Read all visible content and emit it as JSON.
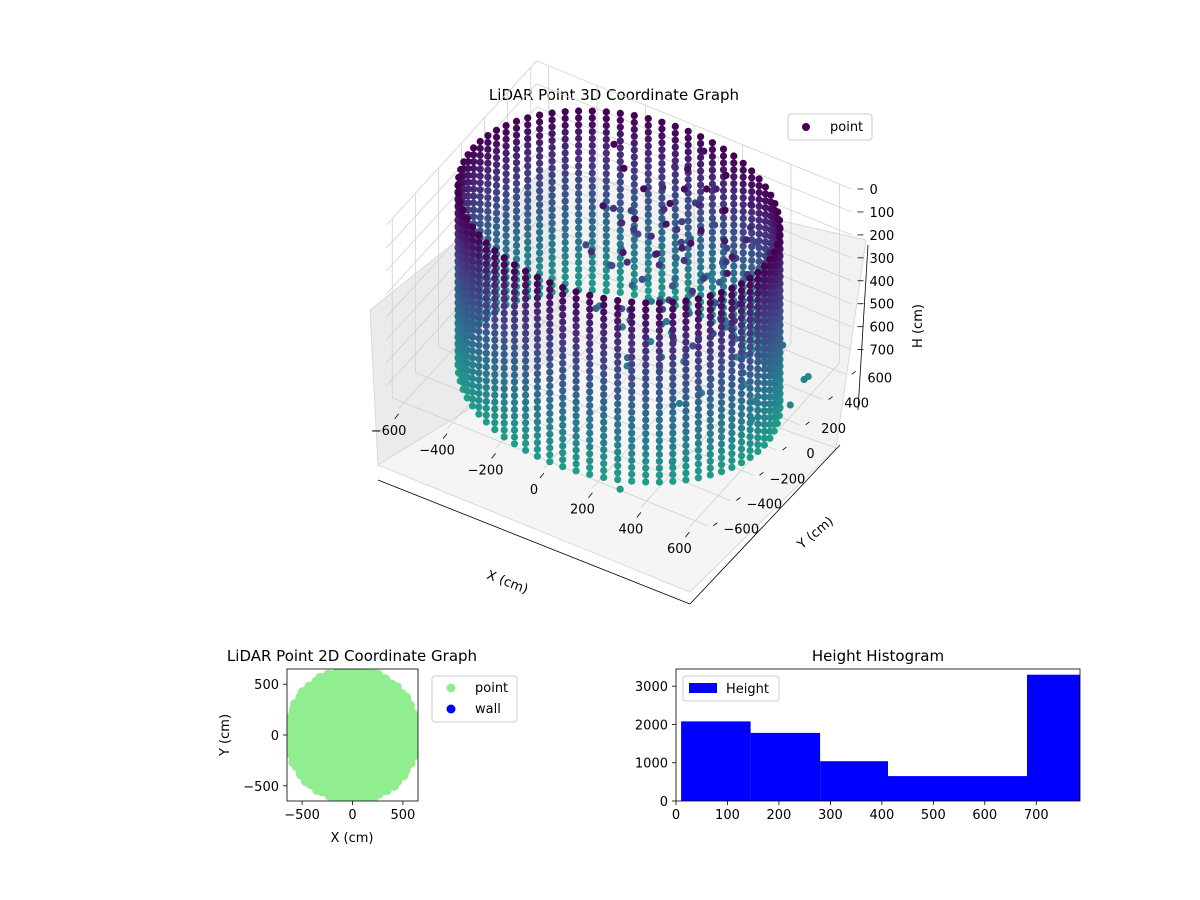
{
  "chart_data": [
    {
      "type": "scatter",
      "projection": "3d",
      "title": "LiDAR Point 3D Coordinate Graph",
      "xlabel": "X (cm)",
      "ylabel": "Y (cm)",
      "zlabel": "H (cm)",
      "xlim": [
        -650,
        650
      ],
      "ylim": [
        -650,
        650
      ],
      "zlim": [
        780,
        0
      ],
      "xticks": [
        -600,
        -400,
        -200,
        0,
        200,
        400,
        600
      ],
      "yticks": [
        -600,
        -400,
        -200,
        0,
        200,
        400,
        600
      ],
      "zticks": [
        0,
        100,
        200,
        300,
        400,
        500,
        600,
        700
      ],
      "zaxis_inverted": true,
      "colormap": "viridis",
      "legend": {
        "placement": "top-right",
        "entries": [
          {
            "label": "point",
            "color": "#440154"
          }
        ]
      },
      "series": [
        {
          "name": "point",
          "shape": "cylindrical wall of radius ~600 cm, heights 0–780 cm, plus an inner cluster near x≈200 y≈200 and a few outliers",
          "radius_cm": 600,
          "h_range": [
            0,
            780
          ],
          "outliers": [
            {
              "x": 640,
              "y": 260,
              "h": 620
            },
            {
              "x": 650,
              "y": 120,
              "h": 650
            },
            {
              "x": 600,
              "y": 380,
              "h": 690
            },
            {
              "x": 420,
              "y": -420,
              "h": 700
            },
            {
              "x": 300,
              "y": -620,
              "h": 760
            }
          ]
        }
      ],
      "grid": true
    },
    {
      "type": "scatter",
      "title": "LiDAR Point 2D Coordinate Graph",
      "xlabel": "X (cm)",
      "ylabel": "Y (cm)",
      "xlim": [
        -650,
        650
      ],
      "ylim": [
        -650,
        650
      ],
      "xticks": [
        -500,
        0,
        500
      ],
      "yticks": [
        -500,
        0,
        500
      ],
      "legend": {
        "placement": "outside-right",
        "entries": [
          {
            "label": "point",
            "color": "#90ee90"
          },
          {
            "label": "wall",
            "color": "#0000ff"
          }
        ]
      },
      "series": [
        {
          "name": "point",
          "color": "#90ee90",
          "shape": "filled disk of radius ~650 cm centred at origin"
        },
        {
          "name": "wall",
          "color": "#0000ff",
          "points": []
        }
      ]
    },
    {
      "type": "bar",
      "subtype": "histogram",
      "title": "Height Histogram",
      "xlim": [
        0,
        785
      ],
      "ylim": [
        0,
        3450
      ],
      "xticks": [
        0,
        100,
        200,
        300,
        400,
        500,
        600,
        700
      ],
      "yticks": [
        0,
        1000,
        2000,
        3000
      ],
      "bin_edges": [
        10,
        145,
        280,
        412,
        547,
        682,
        785
      ],
      "values": [
        2080,
        1780,
        1040,
        650,
        650,
        3300
      ],
      "color": "#0000ff",
      "legend": {
        "placement": "top-left",
        "entries": [
          {
            "label": "Height",
            "color": "#0000ff"
          }
        ]
      },
      "grid": false
    }
  ]
}
